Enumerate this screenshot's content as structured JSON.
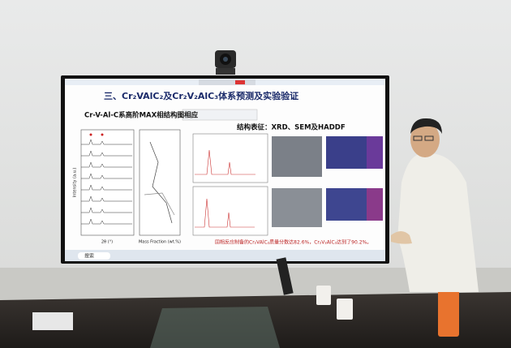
{
  "slide": {
    "title": "三、Cr₂VAlC₂及Cr₂V₂AlC₃体系预测及实验验证",
    "subtitle": "Cr-V-Al-C系高阶MAX相结构图相应",
    "section_heading": "结构表征：XRD、SEM及HADDF",
    "conclusion": "固相反应制备的Cr₂VAlC₂质量分数达82.6%，Cr₂V₂AlC₃达到了90.2%。",
    "axis_labels": {
      "intensity": "Intensity (a.u.)",
      "two_theta": "2θ (°)",
      "mass_fraction": "Mass Fraction (wt.%)"
    }
  },
  "taskbar": {
    "search": "搜索"
  }
}
